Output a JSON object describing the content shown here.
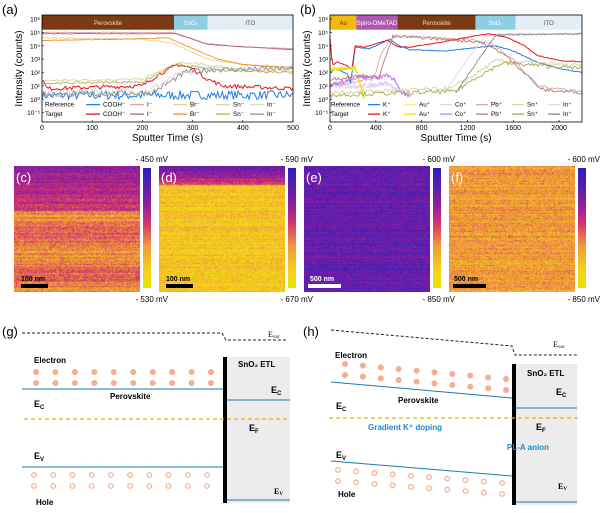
{
  "panel_labels": {
    "a": "(a)",
    "b": "(b)",
    "c": "(c)",
    "d": "(d)",
    "e": "(e)",
    "f": "(f)",
    "g": "(g)",
    "h": "(h)"
  },
  "chart_data": [
    {
      "id": "a",
      "type": "line",
      "xlabel": "Sputter Time (s)",
      "ylabel": "Intensity (counts)",
      "yscale": "log",
      "xlim": [
        0,
        500
      ],
      "ylim_log10": [
        -1.7,
        6.3
      ],
      "xticks": [
        "0",
        "100",
        "200",
        "300",
        "400",
        "500"
      ],
      "xtick_values": [
        0,
        100,
        200,
        300,
        400,
        500
      ],
      "yticks": [
        "10⁻¹",
        "10⁰",
        "10¹",
        "10²",
        "10³",
        "10⁴",
        "10⁵",
        "10⁶"
      ],
      "ytick_values_log10": [
        -1,
        0,
        1,
        2,
        3,
        4,
        5,
        6
      ],
      "layers": [
        {
          "label": "Perovskite",
          "from": 0,
          "to": 263,
          "color": "#7a3b12",
          "text_color": "#f3d9c8"
        },
        {
          "label": "SnO₂",
          "from": 263,
          "to": 330,
          "color": "#8ecde6",
          "text_color": "#ffffff"
        },
        {
          "label": "ITO",
          "from": 330,
          "to": 500,
          "color": "#e4edf8",
          "text_color": "#555555"
        }
      ],
      "legend_rows": [
        "Reference",
        "Target"
      ],
      "series": [
        {
          "name": "COOH⁻",
          "group": "Reference",
          "color": "#1f7fe8",
          "noise": 0.35,
          "points": [
            [
              0,
              0.3
            ],
            [
              500,
              0.3
            ]
          ]
        },
        {
          "name": "I⁻",
          "group": "Reference",
          "color": "#dba3ab",
          "noise": 0.02,
          "points": [
            [
              0,
              5
            ],
            [
              260,
              5
            ],
            [
              320,
              4.2
            ],
            [
              400,
              3.9
            ],
            [
              500,
              3.8
            ]
          ]
        },
        {
          "name": "Br⁻",
          "group": "Reference",
          "color": "#f7cc95",
          "noise": 0.02,
          "points": [
            [
              0,
              4.6
            ],
            [
              200,
              4.5
            ],
            [
              260,
              4.2
            ],
            [
              330,
              3.0
            ],
            [
              400,
              2.6
            ],
            [
              500,
              2.4
            ]
          ]
        },
        {
          "name": "Sn⁻",
          "group": "Reference",
          "color": "#d6d6a6",
          "noise": 0.08,
          "points": [
            [
              0,
              1.4
            ],
            [
              200,
              1.5
            ],
            [
              270,
              2.7
            ],
            [
              300,
              2.7
            ],
            [
              400,
              2.2
            ],
            [
              500,
              2.1
            ]
          ]
        },
        {
          "name": "In⁻",
          "group": "Reference",
          "color": "#d8d8d8",
          "noise": 0.25,
          "points": [
            [
              0,
              0.5
            ],
            [
              210,
              0.6
            ],
            [
              270,
              1.8
            ],
            [
              330,
              2.3
            ],
            [
              500,
              2.4
            ]
          ]
        },
        {
          "name": "COOH⁻",
          "group": "Target",
          "color": "#e8141c",
          "noise": 0.15,
          "points": [
            [
              0,
              1.5
            ],
            [
              10,
              0.8
            ],
            [
              200,
              1.0
            ],
            [
              230,
              1.8
            ],
            [
              270,
              2.6
            ],
            [
              300,
              2.3
            ],
            [
              330,
              1.5
            ],
            [
              360,
              1.0
            ],
            [
              500,
              0.8
            ]
          ]
        },
        {
          "name": "I⁻",
          "group": "Target",
          "color": "#b66272",
          "noise": 0.02,
          "points": [
            [
              0,
              4.9
            ],
            [
              270,
              4.9
            ],
            [
              330,
              4.1
            ],
            [
              500,
              3.7
            ]
          ]
        },
        {
          "name": "Br⁻",
          "group": "Target",
          "color": "#f5921e",
          "noise": 0.02,
          "points": [
            [
              0,
              4.4
            ],
            [
              180,
              4.5
            ],
            [
              250,
              4.6
            ],
            [
              300,
              3.8
            ],
            [
              350,
              3.0
            ],
            [
              400,
              2.6
            ],
            [
              500,
              2.3
            ]
          ]
        },
        {
          "name": "Sn⁻",
          "group": "Target",
          "color": "#b0b062",
          "noise": 0.08,
          "points": [
            [
              0,
              1.2
            ],
            [
              200,
              1.3
            ],
            [
              270,
              2.6
            ],
            [
              350,
              2.2
            ],
            [
              500,
              2.0
            ]
          ]
        },
        {
          "name": "In⁻",
          "group": "Target",
          "color": "#929292",
          "noise": 0.2,
          "points": [
            [
              0,
              0.3
            ],
            [
              220,
              0.5
            ],
            [
              290,
              2.1
            ],
            [
              340,
              2.2
            ],
            [
              500,
              2.3
            ]
          ]
        }
      ]
    },
    {
      "id": "b",
      "type": "line",
      "xlabel": "Sputter Time (s)",
      "ylabel": "Intensity (counts)",
      "yscale": "log",
      "xlim": [
        0,
        2200
      ],
      "ylim_log10": [
        -1.7,
        6.3
      ],
      "xticks": [
        "0",
        "400",
        "800",
        "1200",
        "1600",
        "2000"
      ],
      "xtick_values": [
        0,
        400,
        800,
        1200,
        1600,
        2000
      ],
      "yticks": [
        "10⁻¹",
        "10⁰",
        "10¹",
        "10²",
        "10³",
        "10⁴",
        "10⁵",
        "10⁶"
      ],
      "ytick_values_log10": [
        -1,
        0,
        1,
        2,
        3,
        4,
        5,
        6
      ],
      "layers": [
        {
          "label": "Au",
          "from": 0,
          "to": 230,
          "color": "#f5b90a",
          "text_color": "#5a3a00"
        },
        {
          "label": "Spiro-OMeTAD",
          "from": 230,
          "to": 590,
          "color": "#b057b0",
          "text_color": "#ffffff"
        },
        {
          "label": "Perovskite",
          "from": 590,
          "to": 1270,
          "color": "#7a3b12",
          "text_color": "#f3d9c8"
        },
        {
          "label": "SnO₂",
          "from": 1270,
          "to": 1620,
          "color": "#8ecde6",
          "text_color": "#ffffff"
        },
        {
          "label": "ITO",
          "from": 1620,
          "to": 2200,
          "color": "#e4edf8",
          "text_color": "#555555"
        }
      ],
      "legend_rows": [
        "Reference",
        "Target"
      ],
      "series": [
        {
          "name": "K⁺",
          "group": "Reference",
          "color": "#1f7fe8",
          "noise": 0.03,
          "points": [
            [
              0,
              2
            ],
            [
              50,
              2.3
            ],
            [
              150,
              1.9
            ],
            [
              180,
              1.2
            ],
            [
              220,
              3.9
            ],
            [
              300,
              3.8
            ],
            [
              350,
              3.8
            ],
            [
              450,
              4.2
            ],
            [
              520,
              4.5
            ],
            [
              600,
              4.0
            ],
            [
              700,
              3.7
            ],
            [
              1000,
              3.6
            ],
            [
              1200,
              3.8
            ],
            [
              1450,
              4.0
            ],
            [
              1600,
              3.6
            ],
            [
              1800,
              2.8
            ],
            [
              2000,
              2.3
            ],
            [
              2200,
              2.0
            ]
          ]
        },
        {
          "name": "Au⁺",
          "group": "Reference",
          "color": "#f6ef7c",
          "noise": 0.1,
          "points": [
            [
              0,
              2.3
            ],
            [
              150,
              2.3
            ],
            [
              230,
              2.2
            ],
            [
              270,
              0.5
            ],
            [
              300,
              0
            ]
          ]
        },
        {
          "name": "Co⁺",
          "group": "Reference",
          "color": "#e2cdf2",
          "noise": 0.2,
          "points": [
            [
              0,
              1
            ],
            [
              300,
              1
            ],
            [
              500,
              1.2
            ],
            [
              600,
              0.5
            ]
          ]
        },
        {
          "name": "Pb⁺",
          "group": "Reference",
          "color": "#d8aaaa",
          "noise": 0.1,
          "points": [
            [
              0,
              1
            ],
            [
              380,
              1.5
            ],
            [
              450,
              3.5
            ],
            [
              550,
              4.7
            ],
            [
              700,
              4.7
            ],
            [
              1200,
              4.5
            ],
            [
              1400,
              4.2
            ],
            [
              1600,
              3.0
            ],
            [
              1800,
              1.0
            ],
            [
              2200,
              0.6
            ]
          ]
        },
        {
          "name": "Sn⁺",
          "group": "Reference",
          "color": "#d3d3a3",
          "noise": 0.15,
          "points": [
            [
              0,
              0.5
            ],
            [
              1050,
              0.8
            ],
            [
              1200,
              1.5
            ],
            [
              1450,
              2.9
            ],
            [
              1600,
              2.8
            ],
            [
              2200,
              2.5
            ]
          ]
        },
        {
          "name": "In⁺",
          "group": "Reference",
          "color": "#dadada",
          "noise": 0.05,
          "points": [
            [
              1000,
              0.5
            ],
            [
              1200,
              3
            ],
            [
              1350,
              4.7
            ],
            [
              1450,
              4.9
            ],
            [
              2200,
              4.9
            ]
          ]
        },
        {
          "name": "K⁺",
          "group": "Target",
          "color": "#e8141c",
          "noise": 0.03,
          "points": [
            [
              0,
              4.5
            ],
            [
              20,
              2.5
            ],
            [
              60,
              2.8
            ],
            [
              150,
              2.5
            ],
            [
              190,
              2.2
            ],
            [
              220,
              4.0
            ],
            [
              300,
              3.9
            ],
            [
              380,
              4.1
            ],
            [
              500,
              4.4
            ],
            [
              600,
              3.9
            ],
            [
              700,
              3.9
            ],
            [
              1000,
              4.3
            ],
            [
              1300,
              4.8
            ],
            [
              1400,
              4.9
            ],
            [
              1550,
              4.6
            ],
            [
              1700,
              4.0
            ],
            [
              1800,
              3.3
            ],
            [
              2000,
              2.9
            ],
            [
              2200,
              2.8
            ]
          ]
        },
        {
          "name": "Au⁺",
          "group": "Target",
          "color": "#efe000",
          "noise": 0.1,
          "points": [
            [
              0,
              2.2
            ],
            [
              150,
              2.3
            ],
            [
              220,
              2.4
            ],
            [
              270,
              1.0
            ],
            [
              300,
              0
            ]
          ]
        },
        {
          "name": "Co⁺",
          "group": "Target",
          "color": "#c07ff0",
          "noise": 0.15,
          "points": [
            [
              0,
              1
            ],
            [
              250,
              1.7
            ],
            [
              400,
              1.6
            ],
            [
              500,
              1.8
            ],
            [
              560,
              1.5
            ],
            [
              620,
              0.5
            ],
            [
              700,
              0.3
            ]
          ]
        },
        {
          "name": "Pb⁺",
          "group": "Target",
          "color": "#b87a7a",
          "noise": 0.12,
          "points": [
            [
              0,
              1.5
            ],
            [
              300,
              1.8
            ],
            [
              420,
              1.6
            ],
            [
              550,
              4.7
            ],
            [
              800,
              4.6
            ],
            [
              1300,
              4.3
            ],
            [
              1500,
              3.5
            ],
            [
              1700,
              2.0
            ],
            [
              1850,
              0.7
            ],
            [
              2200,
              0.5
            ]
          ]
        },
        {
          "name": "Sn⁺",
          "group": "Target",
          "color": "#a8a852",
          "noise": 0.15,
          "points": [
            [
              0,
              0.3
            ],
            [
              1100,
              0.6
            ],
            [
              1250,
              1.5
            ],
            [
              1500,
              2.7
            ],
            [
              1700,
              2.6
            ],
            [
              2200,
              2.3
            ]
          ]
        },
        {
          "name": "In⁺",
          "group": "Target",
          "color": "#8a8a8a",
          "noise": 0.05,
          "points": [
            [
              1100,
              0.5
            ],
            [
              1300,
              3
            ],
            [
              1450,
              4.8
            ],
            [
              2200,
              4.9
            ]
          ]
        }
      ]
    }
  ],
  "kpfm": [
    {
      "label": "(c)",
      "top": "- 450 mV",
      "bottom": "- 530 mV",
      "scale": "100 nm"
    },
    {
      "label": "(d)",
      "top": "- 590 mV",
      "bottom": "- 670 mV",
      "scale": "100 nm"
    },
    {
      "label": "(e)",
      "top": "- 600 mV",
      "bottom": "- 850 mV",
      "scale": "500 nm"
    },
    {
      "label": "(f)",
      "top": "- 600 mV",
      "bottom": "- 850 mV",
      "scale": "500 nm"
    }
  ],
  "band_g": {
    "evac": "E",
    "evac_sub": "vac",
    "electron": "Electron",
    "hole": "Hole",
    "perovskite": "Perovskite",
    "etl": "SnO₂ ETL",
    "ec": "E",
    "ec_sub": "C",
    "ev": "E",
    "ev_sub": "V",
    "ef": "E",
    "ef_sub": "F"
  },
  "band_h": {
    "evac": "E",
    "evac_sub": "vac",
    "electron": "Electron",
    "hole": "Hole",
    "perovskite": "Perovskite",
    "etl": "SnO₂ ETL",
    "ec": "E",
    "ec_sub": "C",
    "ev": "E",
    "ev_sub": "V",
    "ef": "E",
    "ef_sub": "F",
    "gradient": "Gradient K⁺ doping",
    "anion": "PL-A anion"
  },
  "colors": {
    "accent_blue": "#1a8bc4",
    "fermi": "#f5a800",
    "carrier": "#f5ae8e",
    "etl_bg": "#ececec"
  }
}
